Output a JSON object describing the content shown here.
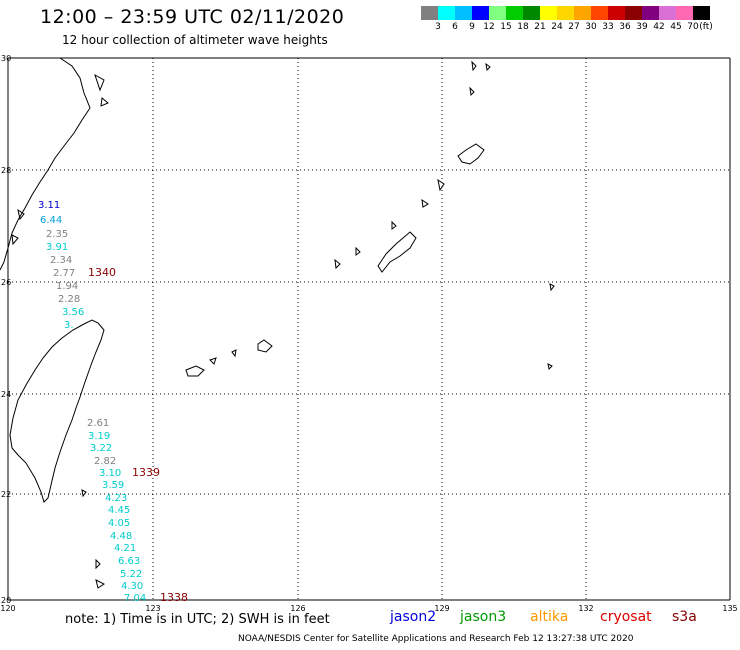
{
  "header": {
    "title": "12:00 – 23:59 UTC 02/11/2020",
    "subtitle": "12 hour collection of altimeter wave heights"
  },
  "color_scale": {
    "colors": [
      "#808080",
      "#00ffff",
      "#00bfff",
      "#0000ff",
      "#80ff80",
      "#00cc00",
      "#008800",
      "#ffff00",
      "#ffd700",
      "#ffa500",
      "#ff4500",
      "#cc0000",
      "#8b0000",
      "#800080",
      "#da70d6",
      "#ff69b4",
      "#000000"
    ],
    "labels": [
      "3",
      "6",
      "9",
      "12",
      "15",
      "18",
      "21",
      "24",
      "27",
      "30",
      "33",
      "36",
      "39",
      "42",
      "45",
      "70",
      "(ft)"
    ]
  },
  "axes": {
    "lat_labels": [
      "30",
      "28",
      "26",
      "24",
      "22",
      "20"
    ],
    "lon_labels": [
      "120",
      "123",
      "126",
      "129",
      "132",
      "135"
    ]
  },
  "measurements": [
    {
      "text": "3.11",
      "color": "#0000cc"
    },
    {
      "text": "6.44",
      "color": "#00a0e0"
    },
    {
      "text": "2.35",
      "color": "#808080"
    },
    {
      "text": "3.91",
      "color": "#00cccc"
    },
    {
      "text": "2.34",
      "color": "#808080"
    },
    {
      "text": "2.77",
      "color": "#808080"
    },
    {
      "text": "1.94",
      "color": "#808080"
    },
    {
      "text": "2.28",
      "color": "#808080"
    },
    {
      "text": "3.56",
      "color": "#00cccc"
    },
    {
      "text": "3.",
      "color": "#00cccc"
    },
    {
      "text": "2.61",
      "color": "#808080"
    },
    {
      "text": "3.19",
      "color": "#00cccc"
    },
    {
      "text": "3.22",
      "color": "#00cccc"
    },
    {
      "text": "2.82",
      "color": "#808080"
    },
    {
      "text": "3.10",
      "color": "#00cccc"
    },
    {
      "text": "3.59",
      "color": "#00cccc"
    },
    {
      "text": "4.23",
      "color": "#00cccc"
    },
    {
      "text": "4.45",
      "color": "#00cccc"
    },
    {
      "text": "4.05",
      "color": "#00cccc"
    },
    {
      "text": "4.48",
      "color": "#00cccc"
    },
    {
      "text": "4.21",
      "color": "#00cccc"
    },
    {
      "text": "6.63",
      "color": "#00cccc"
    },
    {
      "text": "5.22",
      "color": "#00cccc"
    },
    {
      "text": "4.30",
      "color": "#00cccc"
    },
    {
      "text": "7.04",
      "color": "#00cccc"
    }
  ],
  "pass_times": [
    {
      "text": "1340",
      "color": "#8b0000"
    },
    {
      "text": "1339",
      "color": "#8b0000"
    },
    {
      "text": "1338",
      "color": "#8b0000"
    }
  ],
  "footer": {
    "note": "note: 1) Time is in UTC; 2) SWH is in feet",
    "credit": "NOAA/NESDIS Center for Satellite Applications and Research   Feb 12 13:27:38 UTC 2020",
    "satellites": [
      {
        "name": "jason2",
        "color": "#0000dd"
      },
      {
        "name": "jason3",
        "color": "#009900"
      },
      {
        "name": "altika",
        "color": "#ff9900"
      },
      {
        "name": "cryosat",
        "color": "#dd0000"
      },
      {
        "name": "s3a",
        "color": "#880000"
      }
    ]
  }
}
